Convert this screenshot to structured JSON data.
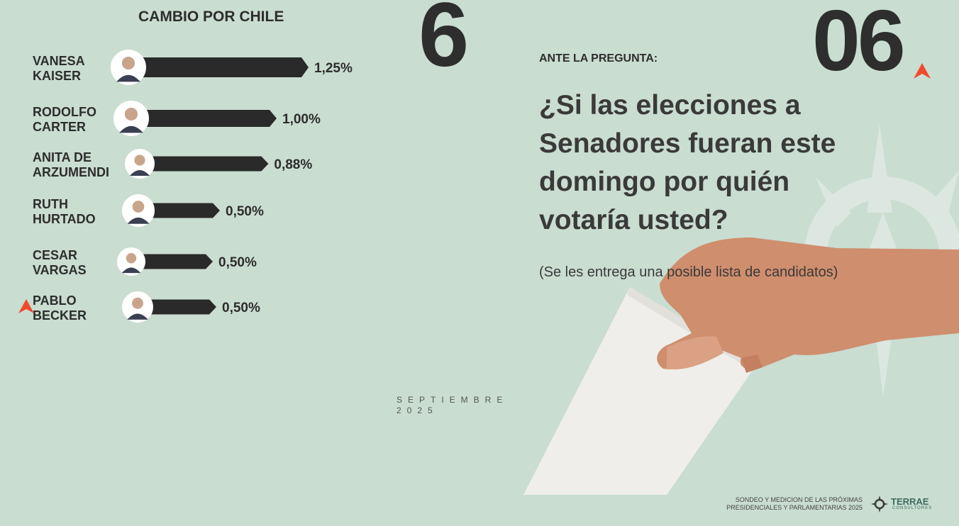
{
  "slide": {
    "big_number": "6",
    "slide_number": "06",
    "ante_label": "ANTE LA PREGUNTA:",
    "question": "¿Si las elecciones a Senadores fueran este domingo por quién votaría usted?",
    "note": "(Se les entrega una posible lista de candidatos)",
    "month": "SEPTIEMBRE",
    "year": "2025",
    "footer_line1": "SONDEO Y MEDICION DE LAS PRÓXIMAS",
    "footer_line2": "PRESIDENCIALES Y PARLAMENTARIAS 2025",
    "brand_name": "TERRAE",
    "brand_sub": "CONSULTORES"
  },
  "colors": {
    "background": "#c9ddd1",
    "bar": "#2a2a2a",
    "accent": "#f04a2c",
    "text": "#2d2d2d"
  },
  "icons": [
    "red-arrow-accent-icon",
    "ballot-hand-image",
    "compass-watermark-icon",
    "terrae-logo-icon",
    "candidate-avatar-icon"
  ],
  "chart_data": {
    "type": "bar",
    "orientation": "horizontal",
    "title": "CAMBIO POR CHILE",
    "categories": [
      [
        "VANESA",
        "KAISER"
      ],
      [
        "RODOLFO",
        "CARTER"
      ],
      [
        "ANITA DE",
        "ARZUMENDI"
      ],
      [
        "RUTH",
        "HURTADO"
      ],
      [
        "CESAR",
        "VARGAS"
      ],
      [
        "PABLO",
        "BECKER"
      ]
    ],
    "values": [
      1.25,
      1.0,
      0.88,
      0.5,
      0.5,
      0.5
    ],
    "value_labels": [
      "1,25%",
      "1,00%",
      "0,88%",
      "0,50%",
      "0,50%",
      "0,50%"
    ],
    "unit": "%"
  }
}
